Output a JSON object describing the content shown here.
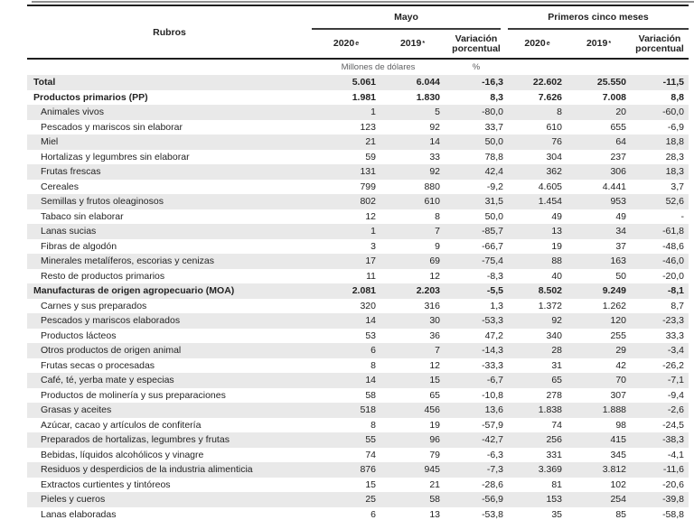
{
  "colors": {
    "text": "#232323",
    "muted_text": "#5f6062",
    "rule_line": "#1e1e1e",
    "group_underline": "#3c3c3c",
    "row_stripe": "#e9e9e9"
  },
  "table": {
    "headers": {
      "rubros": "Rubros",
      "group_mayo": "Mayo",
      "group_pcm": "Primeros cinco meses",
      "y2020": "2020",
      "y2020_sup": "e",
      "y2019": "2019",
      "y2019_sup": "*",
      "variacion": "Variación porcentual"
    },
    "units": {
      "millions": "Millones de dólares",
      "percent": "%"
    },
    "rows": [
      {
        "label": "Total",
        "bold": true,
        "indent": false,
        "values": [
          "5.061",
          "6.044",
          "-16,3",
          "22.602",
          "25.550",
          "-11,5"
        ]
      },
      {
        "label": "Productos primarios (PP)",
        "bold": true,
        "indent": false,
        "values": [
          "1.981",
          "1.830",
          "8,3",
          "7.626",
          "7.008",
          "8,8"
        ]
      },
      {
        "label": "Animales vivos",
        "bold": false,
        "indent": true,
        "values": [
          "1",
          "5",
          "-80,0",
          "8",
          "20",
          "-60,0"
        ]
      },
      {
        "label": "Pescados y mariscos sin elaborar",
        "bold": false,
        "indent": true,
        "values": [
          "123",
          "92",
          "33,7",
          "610",
          "655",
          "-6,9"
        ]
      },
      {
        "label": "Miel",
        "bold": false,
        "indent": true,
        "values": [
          "21",
          "14",
          "50,0",
          "76",
          "64",
          "18,8"
        ]
      },
      {
        "label": "Hortalizas y legumbres sin elaborar",
        "bold": false,
        "indent": true,
        "values": [
          "59",
          "33",
          "78,8",
          "304",
          "237",
          "28,3"
        ]
      },
      {
        "label": "Frutas frescas",
        "bold": false,
        "indent": true,
        "values": [
          "131",
          "92",
          "42,4",
          "362",
          "306",
          "18,3"
        ]
      },
      {
        "label": "Cereales",
        "bold": false,
        "indent": true,
        "values": [
          "799",
          "880",
          "-9,2",
          "4.605",
          "4.441",
          "3,7"
        ]
      },
      {
        "label": "Semillas y frutos oleaginosos",
        "bold": false,
        "indent": true,
        "values": [
          "802",
          "610",
          "31,5",
          "1.454",
          "953",
          "52,6"
        ]
      },
      {
        "label": "Tabaco sin elaborar",
        "bold": false,
        "indent": true,
        "values": [
          "12",
          "8",
          "50,0",
          "49",
          "49",
          "-"
        ]
      },
      {
        "label": "Lanas sucias",
        "bold": false,
        "indent": true,
        "values": [
          "1",
          "7",
          "-85,7",
          "13",
          "34",
          "-61,8"
        ]
      },
      {
        "label": "Fibras de algodón",
        "bold": false,
        "indent": true,
        "values": [
          "3",
          "9",
          "-66,7",
          "19",
          "37",
          "-48,6"
        ]
      },
      {
        "label": "Minerales metalíferos, escorias y cenizas",
        "bold": false,
        "indent": true,
        "values": [
          "17",
          "69",
          "-75,4",
          "88",
          "163",
          "-46,0"
        ]
      },
      {
        "label": "Resto de productos primarios",
        "bold": false,
        "indent": true,
        "values": [
          "11",
          "12",
          "-8,3",
          "40",
          "50",
          "-20,0"
        ]
      },
      {
        "label": "Manufacturas de origen agropecuario (MOA)",
        "bold": true,
        "indent": false,
        "values": [
          "2.081",
          "2.203",
          "-5,5",
          "8.502",
          "9.249",
          "-8,1"
        ]
      },
      {
        "label": "Carnes y sus preparados",
        "bold": false,
        "indent": true,
        "values": [
          "320",
          "316",
          "1,3",
          "1.372",
          "1.262",
          "8,7"
        ]
      },
      {
        "label": "Pescados y mariscos elaborados",
        "bold": false,
        "indent": true,
        "values": [
          "14",
          "30",
          "-53,3",
          "92",
          "120",
          "-23,3"
        ]
      },
      {
        "label": "Productos lácteos",
        "bold": false,
        "indent": true,
        "values": [
          "53",
          "36",
          "47,2",
          "340",
          "255",
          "33,3"
        ]
      },
      {
        "label": "Otros productos de origen animal",
        "bold": false,
        "indent": true,
        "values": [
          "6",
          "7",
          "-14,3",
          "28",
          "29",
          "-3,4"
        ]
      },
      {
        "label": "Frutas secas o procesadas",
        "bold": false,
        "indent": true,
        "values": [
          "8",
          "12",
          "-33,3",
          "31",
          "42",
          "-26,2"
        ]
      },
      {
        "label": "Café, té, yerba mate y especias",
        "bold": false,
        "indent": true,
        "values": [
          "14",
          "15",
          "-6,7",
          "65",
          "70",
          "-7,1"
        ]
      },
      {
        "label": "Productos de molinería y sus preparaciones",
        "bold": false,
        "indent": true,
        "values": [
          "58",
          "65",
          "-10,8",
          "278",
          "307",
          "-9,4"
        ]
      },
      {
        "label": "Grasas y aceites",
        "bold": false,
        "indent": true,
        "values": [
          "518",
          "456",
          "13,6",
          "1.838",
          "1.888",
          "-2,6"
        ]
      },
      {
        "label": "Azúcar, cacao y artículos de confitería",
        "bold": false,
        "indent": true,
        "values": [
          "8",
          "19",
          "-57,9",
          "74",
          "98",
          "-24,5"
        ]
      },
      {
        "label": "Preparados de hortalizas, legumbres y frutas",
        "bold": false,
        "indent": true,
        "values": [
          "55",
          "96",
          "-42,7",
          "256",
          "415",
          "-38,3"
        ]
      },
      {
        "label": "Bebidas, líquidos alcohólicos y vinagre",
        "bold": false,
        "indent": true,
        "values": [
          "74",
          "79",
          "-6,3",
          "331",
          "345",
          "-4,1"
        ]
      },
      {
        "label": "Residuos y desperdicios de la industria alimenticia",
        "bold": false,
        "indent": true,
        "values": [
          "876",
          "945",
          "-7,3",
          "3.369",
          "3.812",
          "-11,6"
        ]
      },
      {
        "label": "Extractos curtientes y tintóreos",
        "bold": false,
        "indent": true,
        "values": [
          "15",
          "21",
          "-28,6",
          "81",
          "102",
          "-20,6"
        ]
      },
      {
        "label": "Pieles y cueros",
        "bold": false,
        "indent": true,
        "values": [
          "25",
          "58",
          "-56,9",
          "153",
          "254",
          "-39,8"
        ]
      },
      {
        "label": "Lanas elaboradas",
        "bold": false,
        "indent": true,
        "values": [
          "6",
          "13",
          "-53,8",
          "35",
          "85",
          "-58,8"
        ]
      }
    ]
  }
}
